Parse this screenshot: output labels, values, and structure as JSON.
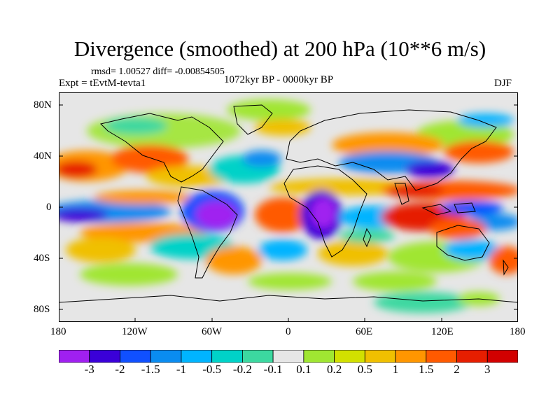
{
  "title": "Divergence (smoothed) at 200 hPa (10**6 m/s)",
  "stats": "rmsd= 1.00527 diff= -0.00854505",
  "experiment": "Expt = tEvtM-tevta1",
  "period": "1072kyr BP - 0000kyr BP",
  "season": "DJF",
  "map": {
    "lat_labels": [
      "80N",
      "40N",
      "0",
      "40S",
      "80S"
    ],
    "lon_labels": [
      "180",
      "120W",
      "60W",
      "0",
      "60E",
      "120E",
      "180"
    ],
    "lat_values": [
      80,
      40,
      0,
      -40,
      -80
    ],
    "lon_values": [
      -180,
      -120,
      -60,
      0,
      60,
      120,
      180
    ]
  },
  "colorbar": {
    "labels": [
      "-3",
      "-2",
      "-1.5",
      "-1",
      "-0.5",
      "-0.2",
      "-0.1",
      "0.1",
      "0.2",
      "0.5",
      "1",
      "1.5",
      "2",
      "3"
    ],
    "colors": [
      "#a020f0",
      "#3a00d8",
      "#1050ff",
      "#0a8cf0",
      "#00b4ff",
      "#00d2c8",
      "#3cd8a0",
      "#e6e6e6",
      "#a0e632",
      "#d2e000",
      "#f0c000",
      "#ff9600",
      "#ff5a00",
      "#e61e00",
      "#d20000"
    ]
  },
  "chart_data": {
    "type": "heatmap",
    "title": "Divergence (smoothed) at 200 hPa (10**6 m/s)",
    "levels": [
      -3,
      -2,
      -1.5,
      -1,
      -0.5,
      -0.2,
      -0.1,
      0.1,
      0.2,
      0.5,
      1,
      1.5,
      2,
      3
    ],
    "xlim": [
      -180,
      180
    ],
    "ylim": [
      -90,
      90
    ],
    "features": [
      {
        "lon": -145,
        "lat": 20,
        "value": 2.5
      },
      {
        "lon": -100,
        "lat": 25,
        "value": 2
      },
      {
        "lon": -140,
        "lat": -12,
        "value": -2.5
      },
      {
        "lon": -95,
        "lat": -25,
        "value": 2
      },
      {
        "lon": -55,
        "lat": -8,
        "value": -3
      },
      {
        "lon": -50,
        "lat": -40,
        "value": 1.5
      },
      {
        "lon": -10,
        "lat": 30,
        "value": -1
      },
      {
        "lon": -15,
        "lat": -5,
        "value": 2
      },
      {
        "lon": 22,
        "lat": -8,
        "value": -3
      },
      {
        "lon": 70,
        "lat": -8,
        "value": 2.5
      },
      {
        "lon": 85,
        "lat": 35,
        "value": -1.5
      },
      {
        "lon": 120,
        "lat": 10,
        "value": 2.5
      },
      {
        "lon": 140,
        "lat": -12,
        "value": 2
      },
      {
        "lon": 100,
        "lat": -30,
        "value": 1
      },
      {
        "lon": 0,
        "lat": -70,
        "value": 1
      }
    ]
  }
}
